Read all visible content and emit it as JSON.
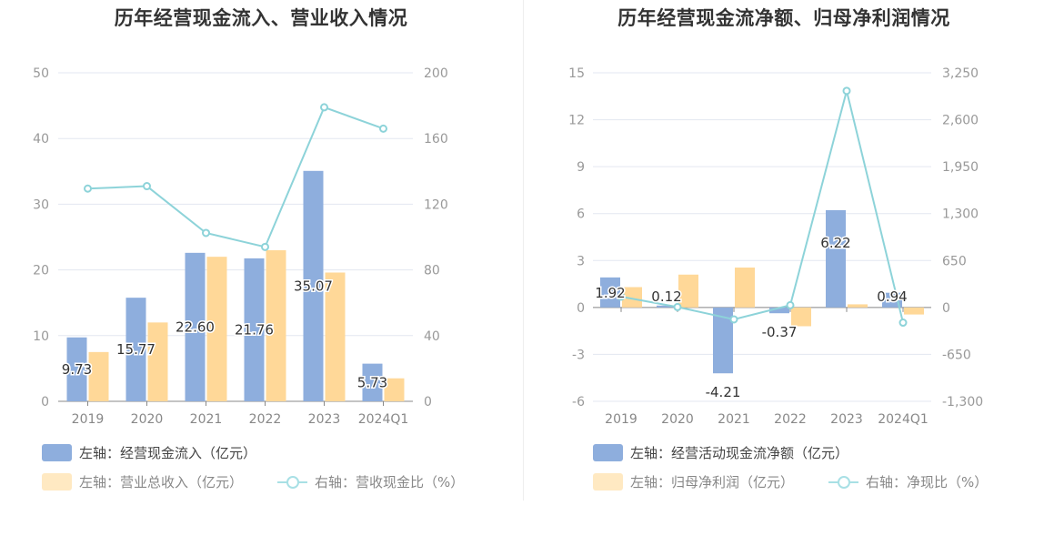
{
  "chart_data": [
    {
      "type": "bar",
      "title": "历年经营现金流入、营业收入情况",
      "categories": [
        "2019",
        "2020",
        "2021",
        "2022",
        "2023",
        "2024Q1"
      ],
      "y_left": {
        "min": 0,
        "max": 50,
        "ticks": [
          "0",
          "10",
          "20",
          "30",
          "40",
          "50"
        ]
      },
      "y_right": {
        "min": 0,
        "max": 200,
        "ticks": [
          "0",
          "40",
          "80",
          "120",
          "160",
          "200"
        ]
      },
      "series": [
        {
          "name": "左轴：经营现金流入（亿元）",
          "axis": "left",
          "kind": "bar",
          "color": "#8eaedd",
          "values": [
            9.73,
            15.77,
            22.6,
            21.76,
            35.07,
            5.73
          ],
          "labels": [
            "9.73",
            "15.77",
            "22.60",
            "21.76",
            "35.07",
            "5.73"
          ]
        },
        {
          "name": "左轴：营业总收入（亿元）",
          "axis": "left",
          "kind": "bar",
          "color": "#ffd898",
          "values": [
            7.5,
            12.0,
            22.0,
            23.0,
            19.6,
            3.5
          ]
        },
        {
          "name": "右轴：营收现金比（%）",
          "axis": "right",
          "kind": "line",
          "color": "#8dd3d9",
          "values": [
            129.5,
            131.0,
            102.5,
            94.0,
            179.0,
            166.0
          ]
        }
      ],
      "grid": true,
      "legend_position": "bottom-left"
    },
    {
      "type": "bar",
      "title": "历年经营现金流净额、归母净利润情况",
      "categories": [
        "2019",
        "2020",
        "2021",
        "2022",
        "2023",
        "2024Q1"
      ],
      "y_left": {
        "min": -6,
        "max": 15,
        "ticks": [
          "-6",
          "-3",
          "0",
          "3",
          "6",
          "9",
          "12",
          "15"
        ]
      },
      "y_right": {
        "min": -1300,
        "max": 3250,
        "ticks": [
          "-1,300",
          "-650",
          "0",
          "650",
          "1,300",
          "1,950",
          "2,600",
          "3,250"
        ]
      },
      "series": [
        {
          "name": "左轴：经营活动现金流净额（亿元）",
          "axis": "left",
          "kind": "bar",
          "color": "#8eaedd",
          "values": [
            1.92,
            0.12,
            -4.21,
            -0.37,
            6.22,
            0.94
          ],
          "labels": [
            "1.92",
            "0.12",
            "-4.21",
            "-0.37",
            "6.22",
            "0.94"
          ]
        },
        {
          "name": "左轴：归母净利润（亿元）",
          "axis": "left",
          "kind": "bar",
          "color": "#ffd898",
          "values": [
            1.3,
            2.1,
            2.55,
            -1.2,
            0.2,
            -0.45
          ]
        },
        {
          "name": "右轴：净现比（%）",
          "axis": "right",
          "kind": "line",
          "color": "#8dd3d9",
          "values": [
            150,
            6,
            -165,
            31,
            3000,
            -210
          ]
        }
      ],
      "grid": true,
      "legend_position": "bottom-left"
    }
  ]
}
